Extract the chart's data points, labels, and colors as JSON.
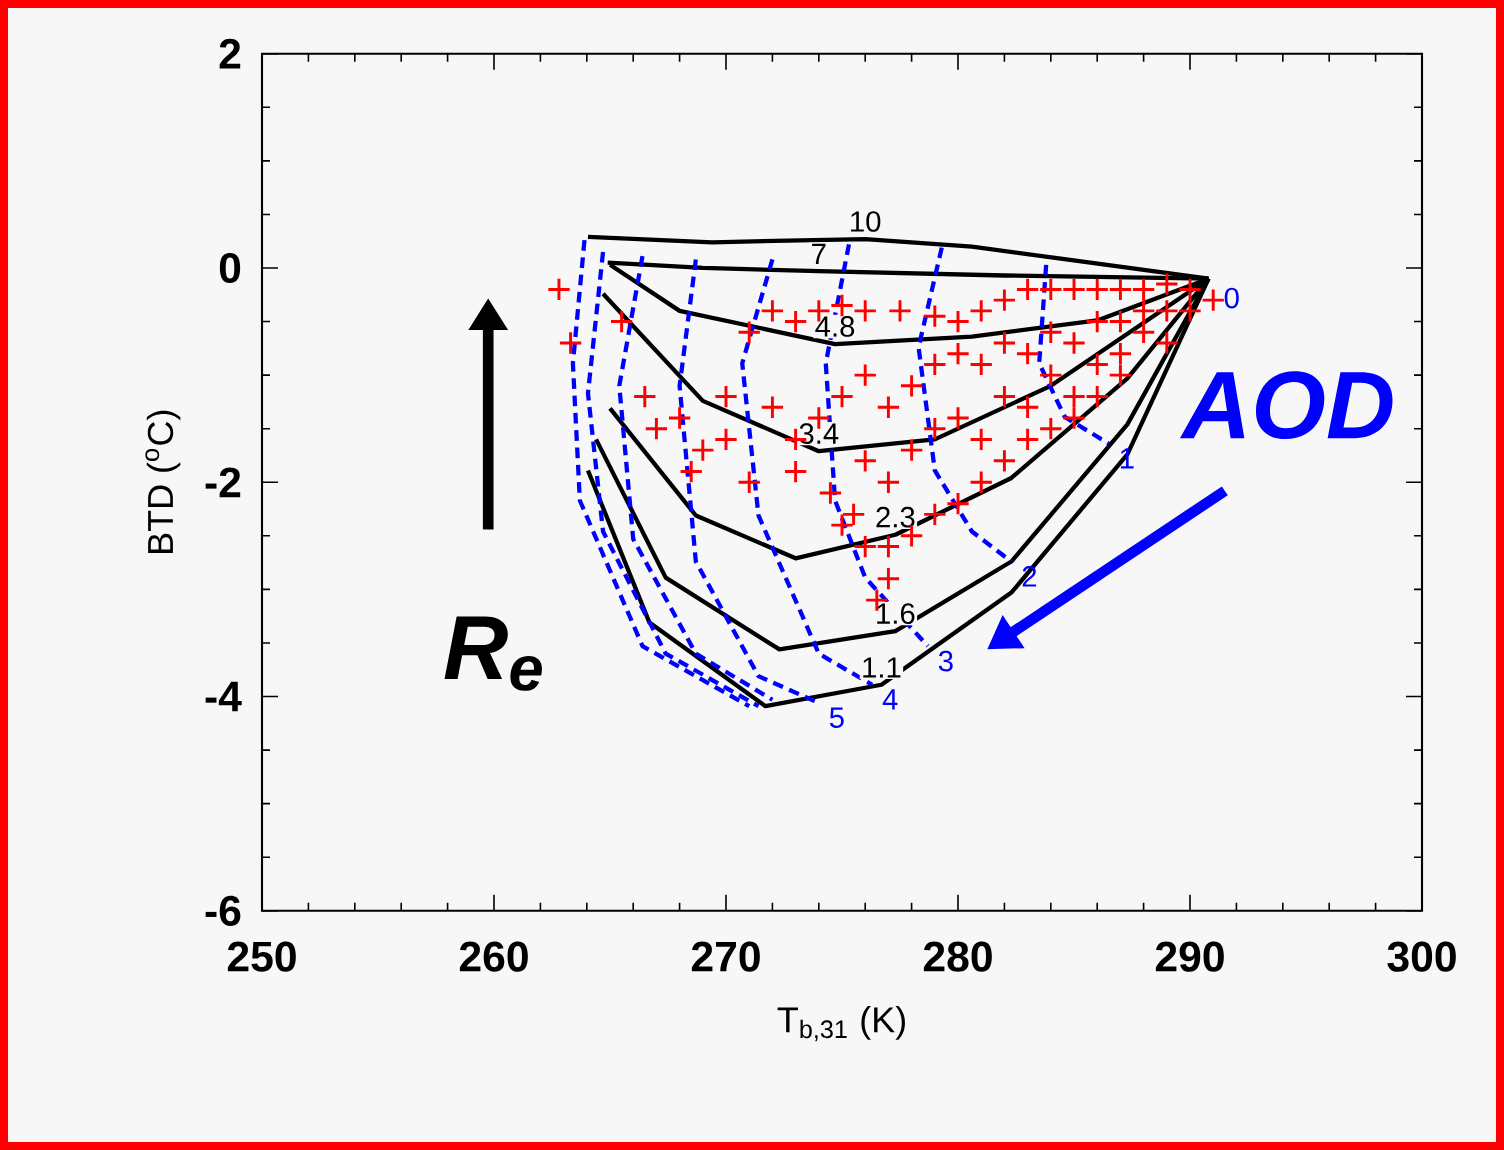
{
  "chart_data": {
    "type": "line",
    "xlabel": "T$_{b,31}$ (K)",
    "ylabel": "BTD ($^{o}$C)",
    "xlim": [
      250,
      300
    ],
    "xticks": [
      250,
      260,
      270,
      280,
      290,
      300
    ],
    "ylim": [
      -6,
      2
    ],
    "yticks": [
      -6,
      -4,
      -2,
      0,
      2
    ],
    "marker": "none",
    "line_style": "solid",
    "annotations": [
      "AOD",
      "R$_{e}$",
      {
        "text": "0",
        "x": 291.8,
        "y": -0.28
      }
    ],
    "series": [
      {
        "name": "10",
        "color": "#000000",
        "x": [
          264.05,
          269.4,
          276.0,
          280.6,
          290.8
        ],
        "values": [
          0.29,
          0.24,
          0.27,
          0.2,
          -0.1
        ]
      },
      {
        "name": "7",
        "color": "#000000",
        "x": [
          264.9,
          269.0,
          274.0,
          282.0,
          290.8
        ],
        "values": [
          0.05,
          0.0,
          -0.03,
          -0.07,
          -0.1
        ]
      },
      {
        "name": "4.8",
        "color": "#000000",
        "x": [
          265.0,
          268.0,
          274.7,
          280.6,
          286.0,
          290.8
        ],
        "values": [
          0.03,
          -0.4,
          -0.71,
          -0.64,
          -0.49,
          -0.1
        ]
      },
      {
        "name": "3.4",
        "color": "#000000",
        "x": [
          264.7,
          269.0,
          274.0,
          279.0,
          284.0,
          290.8
        ],
        "values": [
          -0.24,
          -1.24,
          -1.71,
          -1.6,
          -1.1,
          -0.1
        ]
      },
      {
        "name": "2.3",
        "color": "#000000",
        "x": [
          265.0,
          268.7,
          273.0,
          277.3,
          282.3,
          287.3,
          290.8
        ],
        "values": [
          -1.31,
          -2.31,
          -2.71,
          -2.49,
          -1.96,
          -1.03,
          -0.1
        ]
      },
      {
        "name": "1.6",
        "color": "#000000",
        "x": [
          264.4,
          267.4,
          272.3,
          277.3,
          282.3,
          287.3,
          290.8
        ],
        "values": [
          -1.6,
          -2.89,
          -3.56,
          -3.39,
          -2.74,
          -1.46,
          -0.1
        ]
      },
      {
        "name": "1.1",
        "color": "#000000",
        "x": [
          264.05,
          266.7,
          271.7,
          276.7,
          282.3,
          287.3,
          290.8
        ],
        "values": [
          -1.89,
          -3.31,
          -4.09,
          -3.89,
          -3.03,
          -1.74,
          -0.1
        ]
      },
      {
        "name": "1",
        "color": "#0000ff",
        "line_style": "dashed",
        "x": [
          283.8,
          283.5,
          284.6,
          286.5
        ],
        "values": [
          0.03,
          -0.89,
          -1.39,
          -1.64
        ]
      },
      {
        "name": "2",
        "color": "#0000ff",
        "line_style": "dashed",
        "x": [
          279.3,
          278.3,
          279.0,
          280.6,
          282.3
        ],
        "values": [
          0.19,
          -0.74,
          -1.89,
          -2.46,
          -2.74
        ]
      },
      {
        "name": "3",
        "color": "#0000ff",
        "line_style": "dashed",
        "x": [
          275.3,
          274.3,
          274.7,
          276.0,
          278.7
        ],
        "values": [
          0.22,
          -0.89,
          -2.17,
          -2.89,
          -3.53
        ]
      },
      {
        "name": "4",
        "color": "#0000ff",
        "line_style": "dashed",
        "x": [
          272.0,
          270.7,
          271.4,
          274.0,
          276.3
        ],
        "values": [
          0.08,
          -0.89,
          -2.31,
          -3.6,
          -3.89
        ]
      },
      {
        "name": "5",
        "color": "#0000ff",
        "line_style": "dashed",
        "x": [
          268.7,
          268.0,
          268.7,
          271.4,
          274.0
        ],
        "values": [
          0.08,
          -1.1,
          -2.74,
          -3.81,
          -4.06
        ]
      },
      {
        "color": "#0000ff",
        "line_style": "dashed",
        "x": [
          266.4,
          265.4,
          266.0,
          268.7,
          272.0
        ],
        "values": [
          0.11,
          -1.1,
          -2.53,
          -3.6,
          -4.03
        ]
      },
      {
        "color": "#0000ff",
        "line_style": "dashed",
        "x": [
          264.7,
          264.05,
          264.7,
          267.4,
          271.4
        ],
        "values": [
          0.15,
          -1.17,
          -2.46,
          -3.6,
          -4.09
        ]
      },
      {
        "color": "#0000ff",
        "line_style": "dashed",
        "x": [
          263.9,
          263.4,
          263.7,
          266.4,
          271.0
        ],
        "values": [
          0.26,
          -0.89,
          -2.17,
          -3.53,
          -4.09
        ]
      },
      {
        "type": "scatter",
        "color": "#ff0000",
        "marker": "cross",
        "x": [
          262.8,
          263.3,
          265.5,
          266.5,
          267,
          268,
          269,
          270,
          270,
          271,
          272,
          273,
          274,
          275,
          276,
          277.5,
          279,
          280,
          281,
          282,
          283,
          284,
          285,
          286,
          287,
          288,
          289,
          290,
          291,
          272,
          273,
          274,
          275,
          276,
          277,
          278,
          279,
          280,
          281,
          282,
          283,
          284,
          285,
          286,
          287,
          288,
          289,
          276,
          277,
          278,
          279,
          280,
          281,
          282,
          283,
          284,
          285,
          286,
          287,
          288,
          289,
          290,
          273,
          274.5,
          275.5,
          276,
          277,
          278,
          279,
          280,
          281,
          282,
          283,
          284,
          285,
          286,
          287,
          277,
          276.5,
          275,
          271,
          268.5
        ],
        "values": [
          -0.2,
          -0.7,
          -0.5,
          -1.2,
          -1.5,
          -1.4,
          -1.7,
          -1.6,
          -1.2,
          -0.6,
          -0.4,
          -0.5,
          -0.4,
          -0.35,
          -0.4,
          -0.4,
          -0.45,
          -0.5,
          -0.4,
          -0.3,
          -0.2,
          -0.2,
          -0.2,
          -0.2,
          -0.2,
          -0.2,
          -0.15,
          -0.2,
          -0.3,
          -1.3,
          -1.6,
          -1.4,
          -1.2,
          -1.0,
          -1.3,
          -1.1,
          -0.9,
          -0.8,
          -0.9,
          -0.7,
          -0.8,
          -0.6,
          -0.7,
          -0.5,
          -0.5,
          -0.4,
          -0.4,
          -1.8,
          -2.0,
          -1.7,
          -1.5,
          -1.4,
          -1.6,
          -1.2,
          -1.3,
          -1.0,
          -1.2,
          -0.9,
          -0.8,
          -0.6,
          -0.7,
          -0.4,
          -1.9,
          -2.1,
          -2.3,
          -2.6,
          -2.6,
          -2.5,
          -2.3,
          -2.2,
          -2.0,
          -1.8,
          -1.6,
          -1.5,
          -1.4,
          -1.2,
          -1.0,
          -2.9,
          -3.1,
          -2.4,
          -2.0,
          -1.9
        ]
      }
    ]
  }
}
